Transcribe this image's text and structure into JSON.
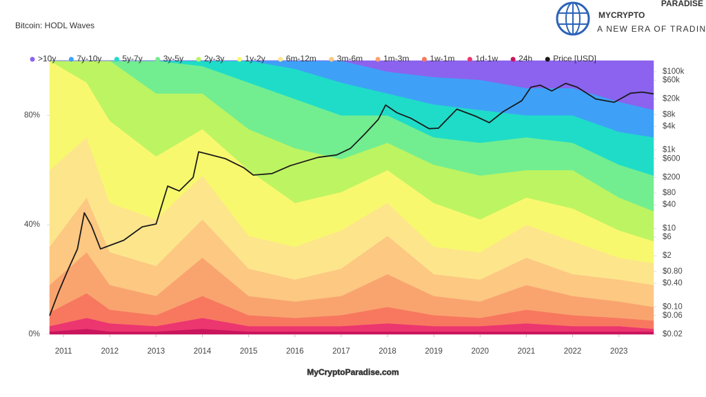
{
  "chart_data": {
    "type": "stacked_area",
    "title": "Bitcoin: HODL Waves",
    "x": [
      2010.7,
      2011.5,
      2012,
      2013,
      2014,
      2015,
      2016,
      2017,
      2018,
      2019,
      2020,
      2021,
      2022,
      2023,
      2023.75
    ],
    "xlim": [
      2010.7,
      2023.75
    ],
    "xticks": [
      2011,
      2012,
      2013,
      2014,
      2015,
      2016,
      2017,
      2018,
      2019,
      2020,
      2021,
      2022,
      2023
    ],
    "ylim": [
      0,
      100
    ],
    "yticks": [
      {
        "value": 0,
        "label": "0%"
      },
      {
        "value": 40,
        "label": "40%"
      },
      {
        "value": 80,
        "label": "80%"
      }
    ],
    "y2_log": true,
    "y2lim": [
      0.02,
      190000
    ],
    "y2ticks": [
      {
        "value": 100000,
        "label": "$100k"
      },
      {
        "value": 60000,
        "label": "$60k"
      },
      {
        "value": 20000,
        "label": "$20k"
      },
      {
        "value": 8000,
        "label": "$8k"
      },
      {
        "value": 4000,
        "label": "$4k"
      },
      {
        "value": 1000,
        "label": "$1k"
      },
      {
        "value": 600,
        "label": "$600"
      },
      {
        "value": 200,
        "label": "$200"
      },
      {
        "value": 80,
        "label": "$80"
      },
      {
        "value": 40,
        "label": "$40"
      },
      {
        "value": 10,
        "label": "$10"
      },
      {
        "value": 6,
        "label": "$6"
      },
      {
        "value": 2,
        "label": "$2"
      },
      {
        "value": 0.8,
        "label": "$0.80"
      },
      {
        "value": 0.4,
        "label": "$0.40"
      },
      {
        "value": 0.1,
        "label": "$0.10"
      },
      {
        "value": 0.06,
        "label": "$0.06"
      },
      {
        "value": 0.02,
        "label": "$0.02"
      }
    ],
    "legend": "top",
    "series": [
      {
        "name": ">10y",
        "color": "#8b63ee",
        "values": [
          0,
          0,
          0,
          0,
          0,
          0,
          0,
          0,
          4,
          6,
          7,
          10,
          10,
          15,
          18
        ]
      },
      {
        "name": "7y-10y",
        "color": "#3ea1f7",
        "values": [
          0,
          0,
          0,
          0,
          0,
          0,
          3,
          8,
          8,
          10,
          11,
          10,
          10,
          11,
          10
        ]
      },
      {
        "name": "5y-7y",
        "color": "#1fdcc8",
        "values": [
          0,
          0,
          0,
          0,
          2,
          8,
          11,
          12,
          8,
          12,
          12,
          8,
          10,
          12,
          14
        ]
      },
      {
        "name": "3y-5y",
        "color": "#72ee90",
        "values": [
          0,
          0,
          0,
          12,
          10,
          17,
          18,
          16,
          10,
          10,
          12,
          12,
          10,
          12,
          13
        ]
      },
      {
        "name": "2y-3y",
        "color": "#bdf462",
        "values": [
          0,
          8,
          22,
          23,
          13,
          15,
          20,
          12,
          10,
          14,
          16,
          10,
          14,
          12,
          11
        ]
      },
      {
        "name": "1y-2y",
        "color": "#f8f86e",
        "values": [
          40,
          20,
          30,
          23,
          17,
          24,
          16,
          14,
          12,
          16,
          12,
          10,
          12,
          10,
          8
        ]
      },
      {
        "name": "6m-12m",
        "color": "#fde58c",
        "values": [
          28,
          22,
          18,
          17,
          16,
          12,
          12,
          14,
          12,
          10,
          10,
          12,
          12,
          8,
          8
        ]
      },
      {
        "name": "3m-6m",
        "color": "#fcc882",
        "values": [
          14,
          20,
          12,
          11,
          14,
          10,
          8,
          10,
          14,
          8,
          8,
          10,
          8,
          8,
          8
        ]
      },
      {
        "name": "1m-3m",
        "color": "#f9a46f",
        "values": [
          10,
          15,
          9,
          7,
          14,
          7,
          6,
          7,
          12,
          7,
          6,
          9,
          7,
          6,
          5
        ]
      },
      {
        "name": "1w-1m",
        "color": "#f7785f",
        "values": [
          5,
          9,
          5,
          4,
          8,
          4,
          3,
          4,
          6,
          4,
          3,
          5,
          4,
          3,
          3
        ]
      },
      {
        "name": "1d-1w",
        "color": "#ec3670",
        "values": [
          2,
          4,
          3,
          2,
          4,
          2,
          2,
          2,
          3,
          2,
          2,
          3,
          2,
          2,
          1
        ]
      },
      {
        "name": "24h",
        "color": "#c9155c",
        "values": [
          1,
          2,
          1,
          1,
          2,
          1,
          1,
          1,
          1,
          1,
          1,
          1,
          1,
          1,
          1
        ]
      },
      {
        "name": "Price [USD]",
        "color": "#1a1a1a",
        "axis": "y2",
        "x": [
          2010.7,
          2010.9,
          2011.1,
          2011.3,
          2011.45,
          2011.6,
          2011.8,
          2011.95,
          2012.3,
          2012.7,
          2013.0,
          2013.25,
          2013.5,
          2013.8,
          2013.92,
          2014.1,
          2014.5,
          2014.9,
          2015.1,
          2015.5,
          2015.9,
          2016.5,
          2016.9,
          2017.2,
          2017.5,
          2017.8,
          2017.96,
          2018.2,
          2018.5,
          2018.9,
          2019.1,
          2019.5,
          2019.9,
          2020.2,
          2020.5,
          2020.9,
          2021.1,
          2021.3,
          2021.55,
          2021.85,
          2022.1,
          2022.5,
          2022.9,
          2023.25,
          2023.5,
          2023.75
        ],
        "values": [
          0.06,
          0.25,
          0.9,
          3,
          25,
          12,
          3,
          3.5,
          5,
          11,
          13,
          120,
          90,
          200,
          900,
          800,
          600,
          350,
          230,
          250,
          400,
          650,
          750,
          1100,
          2500,
          6000,
          14000,
          9000,
          6500,
          3500,
          3600,
          11000,
          7300,
          5000,
          9500,
          18000,
          40000,
          45000,
          32000,
          50000,
          40000,
          20000,
          16500,
          28000,
          30000,
          27000
        ]
      }
    ]
  },
  "branding": {
    "logo": "MYCRYPTO",
    "logo_sup": "PARADISE",
    "tagline": "A NEW ERA OF TRADING",
    "watermark": "MyCryptoParadise.com"
  }
}
